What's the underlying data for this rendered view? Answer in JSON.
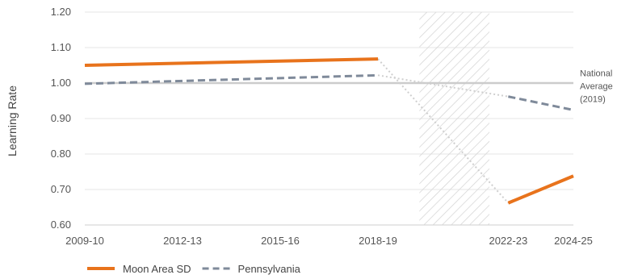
{
  "chart_data": {
    "type": "line",
    "ylabel": "Learning Rate",
    "ylim": [
      0.6,
      1.2
    ],
    "yticks": [
      "1.20",
      "1.10",
      "1.00",
      "0.90",
      "0.80",
      "0.70",
      "0.60"
    ],
    "ytick_values": [
      1.2,
      1.1,
      1.0,
      0.9,
      0.8,
      0.7,
      0.6
    ],
    "x_tick_labels": [
      "2009-10",
      "2012-13",
      "2015-16",
      "2018-19",
      "2022-23",
      "2024-25"
    ],
    "x_tick_years": [
      2009,
      2012,
      2015,
      2018,
      2022,
      2024
    ],
    "xlim": [
      2009,
      2024
    ],
    "shaded_period": [
      2019,
      2021
    ],
    "reference_line": {
      "value": 1.0,
      "label_lines": [
        "National",
        "Average",
        "(2019)"
      ]
    },
    "series": [
      {
        "name": "Moon Area SD",
        "color": "#e8731c",
        "style": "solid",
        "segments": [
          {
            "x": [
              2009,
              2018
            ],
            "y": [
              1.05,
              1.068
            ]
          },
          {
            "x": [
              2022,
              2024
            ],
            "y": [
              0.662,
              0.738
            ]
          }
        ],
        "bridge": {
          "x": [
            2018,
            2022
          ],
          "y": [
            1.068,
            0.662
          ]
        }
      },
      {
        "name": "Pennsylvania",
        "color": "#7f8a9a",
        "style": "dashed",
        "segments": [
          {
            "x": [
              2009,
              2018
            ],
            "y": [
              0.998,
              1.022
            ]
          },
          {
            "x": [
              2022,
              2024
            ],
            "y": [
              0.962,
              0.924
            ]
          }
        ],
        "bridge": {
          "x": [
            2018,
            2022
          ],
          "y": [
            1.022,
            0.962
          ]
        }
      }
    ],
    "grid": "horizontal",
    "legend_position": "bottom-left"
  }
}
